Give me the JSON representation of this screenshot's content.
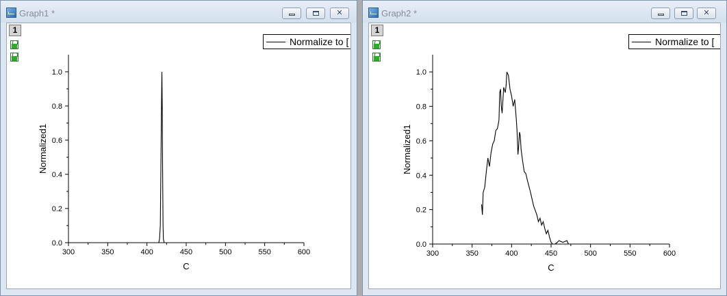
{
  "windows": [
    {
      "title": "Graph1 *",
      "layer_label": "1",
      "legend": "Normalize to [",
      "chart_data": {
        "type": "line",
        "title": "",
        "xlabel": "C",
        "ylabel": "Normalized1",
        "xlim": [
          300,
          600
        ],
        "ylim": [
          0,
          1.1
        ],
        "xticks": [
          300,
          350,
          400,
          450,
          500,
          550,
          600
        ],
        "yticks": [
          0.0,
          0.2,
          0.4,
          0.6,
          0.8,
          1.0
        ],
        "xtick_labels": [
          "300",
          "350",
          "400",
          "450",
          "500",
          "550",
          "600"
        ],
        "ytick_labels": [
          "0.0",
          "0.2",
          "0.4",
          "0.6",
          "0.8",
          "1.0"
        ],
        "series": [
          {
            "name": "Normalize to [",
            "x": [
              415,
              416,
              417,
              418,
              418.5,
              419,
              419.5,
              420,
              420.5,
              421,
              422
            ],
            "y": [
              0,
              0.02,
              0.1,
              0.55,
              0.79,
              1.0,
              0.8,
              0.4,
              0.1,
              0.02,
              0
            ]
          }
        ]
      }
    },
    {
      "title": "Graph2 *",
      "layer_label": "1",
      "legend": "Normalize to [",
      "chart_data": {
        "type": "line",
        "title": "",
        "xlabel": "C",
        "ylabel": "Normalized1",
        "xlim": [
          300,
          600
        ],
        "ylim": [
          0,
          1.1
        ],
        "xticks": [
          300,
          350,
          400,
          450,
          500,
          550,
          600
        ],
        "yticks": [
          0.0,
          0.2,
          0.4,
          0.6,
          0.8,
          1.0
        ],
        "xtick_labels": [
          "300",
          "350",
          "400",
          "450",
          "500",
          "550",
          "600"
        ],
        "ytick_labels": [
          "0.0",
          "0.2",
          "0.4",
          "0.6",
          "0.8",
          "1.0"
        ],
        "series": [
          {
            "name": "Normalize to [",
            "x": [
              362,
              363,
              364,
              366,
              368,
              370,
              372,
              374,
              376,
              378,
              380,
              382,
              384,
              385,
              386,
              387,
              388,
              390,
              392,
              393,
              394,
              396,
              398,
              400,
              402,
              404,
              406,
              407,
              408,
              409,
              410,
              411,
              412,
              414,
              416,
              418,
              420,
              424,
              428,
              432,
              434,
              436,
              438,
              440,
              442,
              444,
              446,
              448,
              450,
              452,
              455,
              458,
              460,
              465,
              470,
              472,
              475,
              480,
              600
            ],
            "y": [
              0.23,
              0.17,
              0.3,
              0.33,
              0.42,
              0.5,
              0.45,
              0.53,
              0.58,
              0.6,
              0.66,
              0.67,
              0.72,
              0.88,
              0.9,
              0.8,
              0.76,
              0.91,
              0.88,
              0.92,
              1.0,
              0.98,
              0.9,
              0.86,
              0.8,
              0.84,
              0.72,
              0.65,
              0.52,
              0.57,
              0.65,
              0.63,
              0.55,
              0.48,
              0.42,
              0.41,
              0.37,
              0.3,
              0.22,
              0.17,
              0.13,
              0.15,
              0.11,
              0.13,
              0.09,
              0.06,
              0.08,
              0.04,
              0.01,
              0.0,
              0.0,
              0.01,
              0.02,
              0.01,
              0.02,
              0.0,
              0.0,
              0.0,
              0.0
            ]
          }
        ]
      }
    }
  ]
}
